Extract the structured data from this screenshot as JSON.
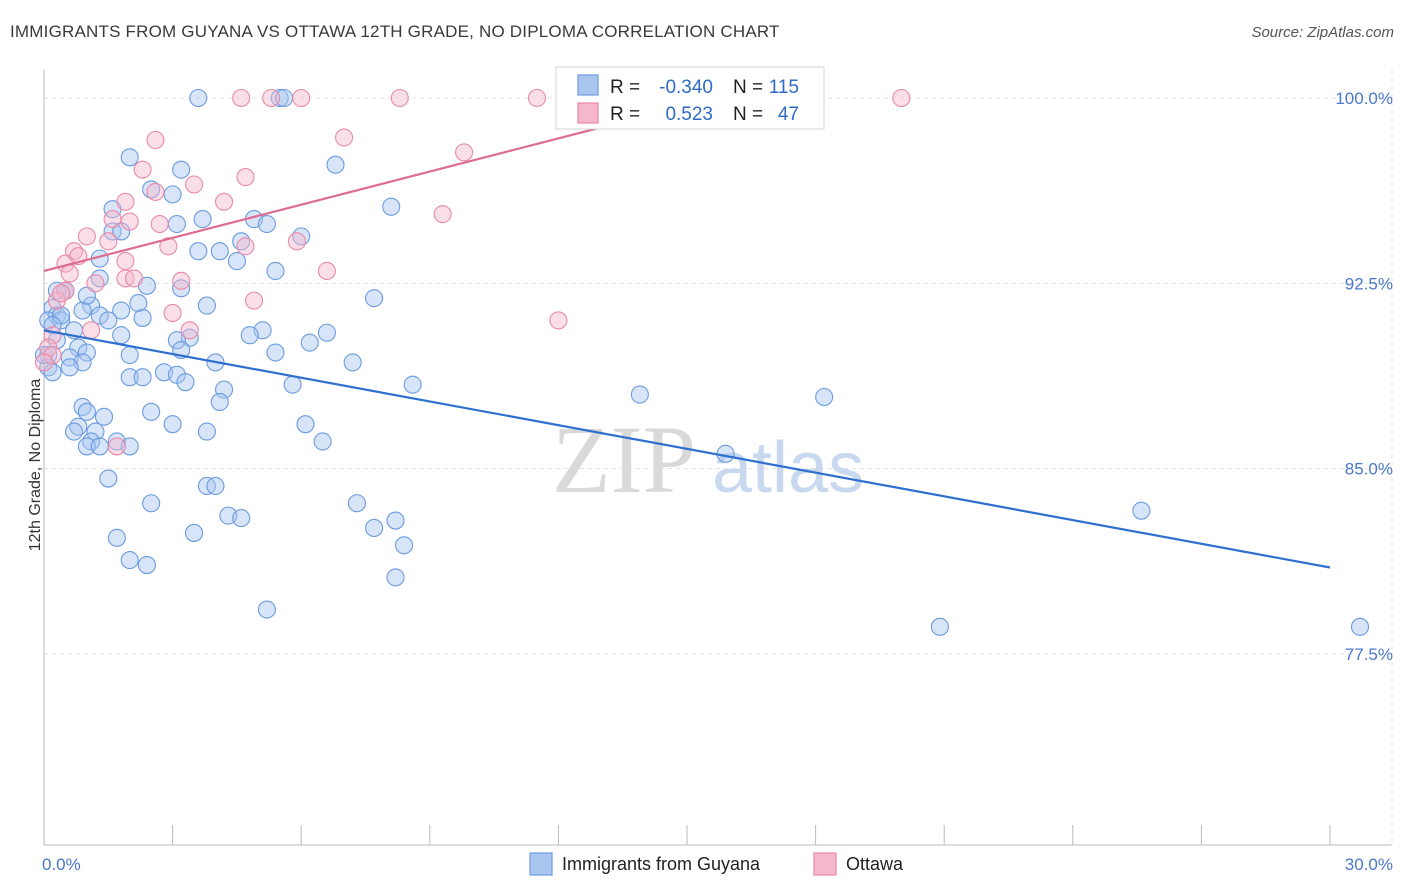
{
  "chart_data": {
    "type": "scatter",
    "title": "IMMIGRANTS FROM GUYANA VS OTTAWA 12TH GRADE, NO DIPLOMA CORRELATION CHART",
    "source": "Source: ZipAtlas.com",
    "ylabel": "12th Grade, No Diploma",
    "xlim": [
      0,
      30
    ],
    "ylim": [
      70,
      101
    ],
    "x_tick_labels": [
      "0.0%",
      "30.0%"
    ],
    "y_ticks": [
      77.5,
      85.0,
      92.5,
      100.0
    ],
    "y_tick_labels": [
      "77.5%",
      "85.0%",
      "92.5%",
      "100.0%"
    ],
    "watermark": {
      "zip": "ZIP",
      "atlas": "atlas"
    },
    "series": [
      {
        "name": "Immigrants from Guyana",
        "color": "#a9c6ef",
        "stroke": "#6a9be0",
        "R": "-0.340",
        "N": "115",
        "trend": {
          "x": [
            0,
            30
          ],
          "y": [
            90.6,
            81.0
          ],
          "color": "#2e6fcf"
        },
        "points": [
          [
            3.6,
            100
          ],
          [
            5.5,
            100
          ],
          [
            5.6,
            100
          ],
          [
            2.0,
            97.6
          ],
          [
            3.2,
            97.1
          ],
          [
            6.8,
            97.3
          ],
          [
            2.5,
            96.3
          ],
          [
            3.0,
            96.1
          ],
          [
            8.1,
            95.6
          ],
          [
            1.6,
            95.5
          ],
          [
            3.7,
            95.1
          ],
          [
            4.9,
            95.1
          ],
          [
            3.1,
            94.9
          ],
          [
            5.2,
            94.9
          ],
          [
            1.6,
            94.6
          ],
          [
            1.8,
            94.6
          ],
          [
            6.0,
            94.4
          ],
          [
            4.6,
            94.2
          ],
          [
            3.6,
            93.8
          ],
          [
            4.1,
            93.8
          ],
          [
            1.3,
            93.5
          ],
          [
            4.5,
            93.4
          ],
          [
            5.4,
            93.0
          ],
          [
            0.5,
            92.2
          ],
          [
            1.3,
            92.7
          ],
          [
            2.4,
            92.4
          ],
          [
            3.2,
            92.3
          ],
          [
            0.3,
            92.2
          ],
          [
            7.7,
            91.9
          ],
          [
            3.8,
            91.6
          ],
          [
            1.1,
            91.6
          ],
          [
            2.2,
            91.7
          ],
          [
            0.2,
            91.5
          ],
          [
            0.3,
            91.2
          ],
          [
            0.9,
            91.4
          ],
          [
            1.3,
            91.2
          ],
          [
            1.8,
            91.4
          ],
          [
            2.3,
            91.1
          ],
          [
            0.1,
            91.0
          ],
          [
            0.4,
            91.0
          ],
          [
            1.5,
            91.0
          ],
          [
            0.7,
            90.6
          ],
          [
            5.1,
            90.6
          ],
          [
            6.6,
            90.5
          ],
          [
            1.8,
            90.4
          ],
          [
            4.8,
            90.4
          ],
          [
            3.4,
            90.3
          ],
          [
            6.2,
            90.1
          ],
          [
            3.1,
            90.2
          ],
          [
            0.8,
            89.9
          ],
          [
            1.0,
            89.7
          ],
          [
            3.2,
            89.8
          ],
          [
            5.4,
            89.7
          ],
          [
            0.6,
            89.5
          ],
          [
            0.9,
            89.3
          ],
          [
            4.0,
            89.3
          ],
          [
            7.2,
            89.3
          ],
          [
            0.6,
            89.1
          ],
          [
            2.0,
            88.7
          ],
          [
            2.3,
            88.7
          ],
          [
            2.8,
            88.9
          ],
          [
            3.1,
            88.8
          ],
          [
            3.3,
            88.5
          ],
          [
            5.8,
            88.4
          ],
          [
            8.6,
            88.4
          ],
          [
            4.2,
            88.2
          ],
          [
            13.9,
            88.0
          ],
          [
            18.2,
            87.9
          ],
          [
            4.1,
            87.7
          ],
          [
            0.9,
            87.5
          ],
          [
            1.0,
            87.3
          ],
          [
            2.5,
            87.3
          ],
          [
            1.4,
            87.1
          ],
          [
            3.0,
            86.8
          ],
          [
            6.1,
            86.8
          ],
          [
            0.8,
            86.7
          ],
          [
            0.7,
            86.5
          ],
          [
            1.2,
            86.5
          ],
          [
            3.8,
            86.5
          ],
          [
            1.1,
            86.1
          ],
          [
            6.5,
            86.1
          ],
          [
            1.7,
            86.1
          ],
          [
            1.0,
            85.9
          ],
          [
            1.3,
            85.9
          ],
          [
            2.0,
            85.9
          ],
          [
            15.9,
            85.6
          ],
          [
            1.5,
            84.6
          ],
          [
            3.8,
            84.3
          ],
          [
            4.0,
            84.3
          ],
          [
            2.5,
            83.6
          ],
          [
            7.3,
            83.6
          ],
          [
            4.3,
            83.1
          ],
          [
            4.6,
            83.0
          ],
          [
            8.2,
            82.9
          ],
          [
            7.7,
            82.6
          ],
          [
            25.6,
            83.3
          ],
          [
            3.5,
            82.4
          ],
          [
            1.7,
            82.2
          ],
          [
            8.4,
            81.9
          ],
          [
            2.0,
            81.3
          ],
          [
            2.4,
            81.1
          ],
          [
            8.2,
            80.6
          ],
          [
            5.2,
            79.3
          ],
          [
            20.9,
            78.6
          ],
          [
            30.7,
            78.6
          ],
          [
            0.1,
            89.6
          ],
          [
            0.1,
            89.1
          ],
          [
            0.4,
            91.2
          ],
          [
            0.2,
            90.8
          ],
          [
            0.5,
            92.2
          ],
          [
            1.0,
            92.0
          ],
          [
            2.0,
            89.6
          ],
          [
            0.0,
            89.6
          ],
          [
            0.2,
            88.9
          ],
          [
            0.3,
            90.2
          ]
        ]
      },
      {
        "name": "Ottawa",
        "color": "#f5b7cb",
        "stroke": "#e98aa9",
        "R": "0.523",
        "N": "47",
        "trend": {
          "x": [
            0,
            17
          ],
          "y": [
            93.0,
            100.6
          ],
          "color": "#de6b92"
        },
        "points": [
          [
            4.6,
            100
          ],
          [
            5.3,
            100
          ],
          [
            6.0,
            100
          ],
          [
            8.3,
            100
          ],
          [
            11.5,
            100
          ],
          [
            20.0,
            100
          ],
          [
            2.6,
            98.3
          ],
          [
            7.0,
            98.4
          ],
          [
            9.8,
            97.8
          ],
          [
            2.3,
            97.1
          ],
          [
            4.7,
            96.8
          ],
          [
            3.5,
            96.5
          ],
          [
            2.6,
            96.2
          ],
          [
            1.9,
            95.8
          ],
          [
            4.2,
            95.8
          ],
          [
            9.3,
            95.3
          ],
          [
            2.0,
            95.0
          ],
          [
            1.6,
            95.1
          ],
          [
            2.7,
            94.9
          ],
          [
            1.0,
            94.4
          ],
          [
            5.9,
            94.2
          ],
          [
            1.5,
            94.2
          ],
          [
            2.9,
            94.0
          ],
          [
            4.7,
            94.0
          ],
          [
            0.7,
            93.8
          ],
          [
            0.8,
            93.6
          ],
          [
            1.9,
            93.4
          ],
          [
            0.5,
            93.3
          ],
          [
            6.6,
            93.0
          ],
          [
            0.6,
            92.9
          ],
          [
            1.9,
            92.7
          ],
          [
            3.2,
            92.6
          ],
          [
            1.2,
            92.5
          ],
          [
            2.1,
            92.7
          ],
          [
            4.9,
            91.8
          ],
          [
            0.5,
            92.2
          ],
          [
            0.3,
            91.8
          ],
          [
            3.0,
            91.3
          ],
          [
            12.0,
            91.0
          ],
          [
            1.1,
            90.6
          ],
          [
            0.2,
            90.4
          ],
          [
            3.4,
            90.6
          ],
          [
            0.1,
            89.9
          ],
          [
            0.2,
            89.6
          ],
          [
            0.0,
            89.3
          ],
          [
            1.7,
            85.9
          ],
          [
            0.4,
            92.1
          ]
        ]
      }
    ]
  },
  "legend": {
    "r_label": "R =",
    "n_label": "N ="
  },
  "bottom_legend": [
    "Immigrants from Guyana",
    "Ottawa"
  ]
}
